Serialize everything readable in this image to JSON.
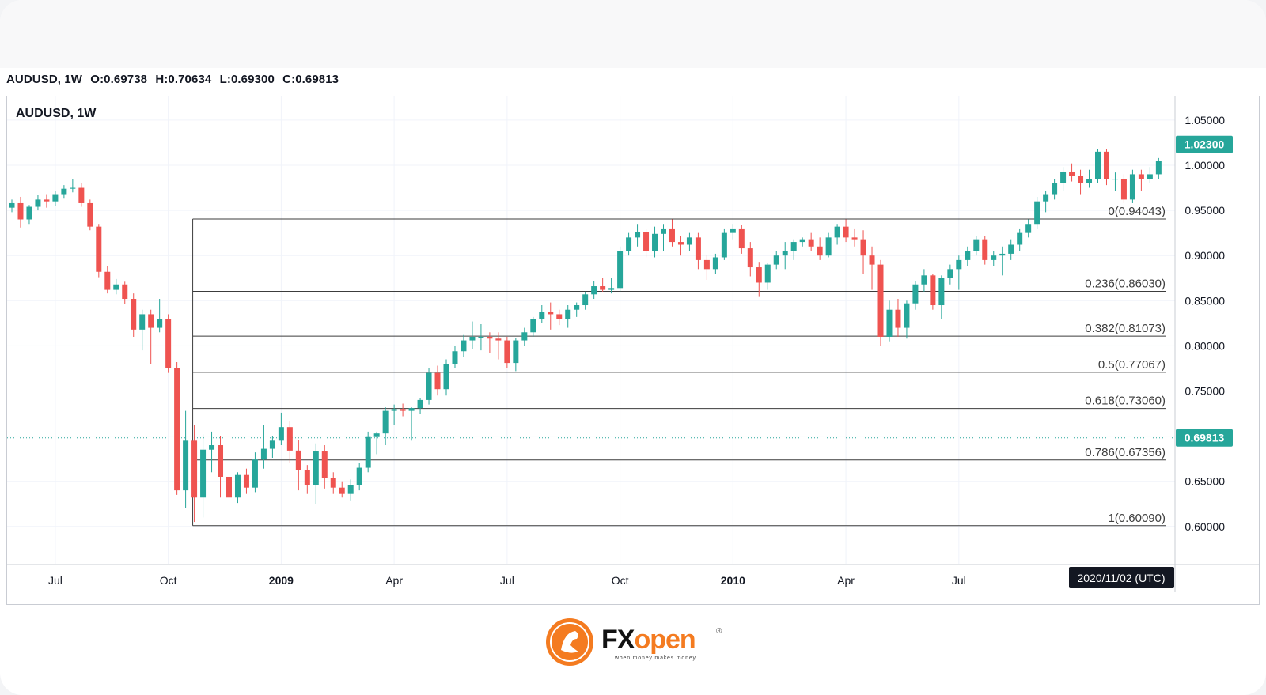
{
  "header": {
    "symbol": "AUDUSD, 1W",
    "open": "O:0.69738",
    "high": "H:0.70634",
    "low": "L:0.69300",
    "close": "C:0.69813"
  },
  "pane_title": "AUDUSD, 1W",
  "brand": {
    "name_fx": "FX",
    "name_open": "open",
    "registered": "®",
    "tagline": "when money makes money"
  },
  "colors": {
    "up": "#26a69a",
    "down": "#ef5350",
    "price_label": "#26a69a",
    "fib_line": "#3c3c3c",
    "accent": "#f47b20"
  },
  "chart_data": {
    "type": "candlestick",
    "symbol": "AUDUSD",
    "interval": "1W",
    "price_axis": {
      "ticks": [
        "1.05000",
        "1.00000",
        "0.95000",
        "0.90000",
        "0.85000",
        "0.80000",
        "0.75000",
        "0.70000",
        "0.65000",
        "0.60000"
      ],
      "tick_values": [
        1.05,
        1.0,
        0.95,
        0.9,
        0.85,
        0.8,
        0.75,
        0.7,
        0.65,
        0.6
      ],
      "ylim": [
        0.555,
        1.078
      ]
    },
    "time_axis": {
      "labels": [
        "Jul",
        "Oct",
        "2009",
        "Apr",
        "Jul",
        "Oct",
        "2010",
        "Apr",
        "Jul"
      ],
      "label_index": [
        5,
        18,
        31,
        44,
        57,
        70,
        83,
        96,
        109
      ],
      "bold": [
        false,
        false,
        true,
        false,
        false,
        false,
        true,
        false,
        false
      ]
    },
    "price_labels": [
      {
        "text": "1.02300",
        "value": 1.023
      },
      {
        "text": "0.69813",
        "value": 0.69813
      }
    ],
    "current_price": 0.69813,
    "crosshair_time_label": "2020/11/02 (UTC)",
    "fibonacci": {
      "start_index": 21,
      "levels": [
        {
          "label": "0(0.94043)",
          "value": 0.94043
        },
        {
          "label": "0.236(0.86030)",
          "value": 0.8603
        },
        {
          "label": "0.382(0.81073)",
          "value": 0.81073
        },
        {
          "label": "0.5(0.77067)",
          "value": 0.77067
        },
        {
          "label": "0.618(0.73060)",
          "value": 0.7306
        },
        {
          "label": "0.786(0.67356)",
          "value": 0.67356
        },
        {
          "label": "1(0.60090)",
          "value": 0.6009
        }
      ]
    },
    "candles": [
      [
        0.953,
        0.962,
        0.948,
        0.958
      ],
      [
        0.958,
        0.965,
        0.931,
        0.94
      ],
      [
        0.94,
        0.956,
        0.935,
        0.954
      ],
      [
        0.954,
        0.967,
        0.95,
        0.962
      ],
      [
        0.962,
        0.968,
        0.953,
        0.96
      ],
      [
        0.96,
        0.972,
        0.955,
        0.968
      ],
      [
        0.968,
        0.978,
        0.963,
        0.974
      ],
      [
        0.974,
        0.985,
        0.97,
        0.975
      ],
      [
        0.975,
        0.98,
        0.954,
        0.958
      ],
      [
        0.958,
        0.962,
        0.928,
        0.932
      ],
      [
        0.932,
        0.935,
        0.876,
        0.882
      ],
      [
        0.882,
        0.888,
        0.858,
        0.862
      ],
      [
        0.862,
        0.874,
        0.857,
        0.868
      ],
      [
        0.868,
        0.871,
        0.846,
        0.852
      ],
      [
        0.852,
        0.858,
        0.81,
        0.818
      ],
      [
        0.818,
        0.84,
        0.795,
        0.835
      ],
      [
        0.835,
        0.84,
        0.78,
        0.82
      ],
      [
        0.82,
        0.852,
        0.815,
        0.83
      ],
      [
        0.83,
        0.835,
        0.77,
        0.775
      ],
      [
        0.775,
        0.782,
        0.635,
        0.64
      ],
      [
        0.64,
        0.728,
        0.62,
        0.695
      ],
      [
        0.695,
        0.712,
        0.605,
        0.632
      ],
      [
        0.632,
        0.702,
        0.61,
        0.685
      ],
      [
        0.685,
        0.705,
        0.66,
        0.69
      ],
      [
        0.69,
        0.7,
        0.632,
        0.655
      ],
      [
        0.655,
        0.664,
        0.61,
        0.632
      ],
      [
        0.632,
        0.66,
        0.626,
        0.657
      ],
      [
        0.657,
        0.664,
        0.636,
        0.643
      ],
      [
        0.643,
        0.682,
        0.638,
        0.674
      ],
      [
        0.674,
        0.712,
        0.664,
        0.686
      ],
      [
        0.686,
        0.7,
        0.676,
        0.695
      ],
      [
        0.695,
        0.726,
        0.69,
        0.71
      ],
      [
        0.71,
        0.717,
        0.67,
        0.684
      ],
      [
        0.684,
        0.696,
        0.64,
        0.662
      ],
      [
        0.662,
        0.668,
        0.636,
        0.646
      ],
      [
        0.646,
        0.692,
        0.625,
        0.683
      ],
      [
        0.683,
        0.69,
        0.642,
        0.654
      ],
      [
        0.654,
        0.66,
        0.636,
        0.643
      ],
      [
        0.643,
        0.65,
        0.632,
        0.636
      ],
      [
        0.636,
        0.652,
        0.628,
        0.646
      ],
      [
        0.646,
        0.67,
        0.64,
        0.665
      ],
      [
        0.665,
        0.705,
        0.66,
        0.699
      ],
      [
        0.699,
        0.705,
        0.68,
        0.703
      ],
      [
        0.703,
        0.732,
        0.69,
        0.728
      ],
      [
        0.728,
        0.735,
        0.712,
        0.73
      ],
      [
        0.73,
        0.736,
        0.722,
        0.728
      ],
      [
        0.728,
        0.732,
        0.695,
        0.731
      ],
      [
        0.731,
        0.742,
        0.725,
        0.74
      ],
      [
        0.74,
        0.775,
        0.735,
        0.77
      ],
      [
        0.77,
        0.778,
        0.745,
        0.752
      ],
      [
        0.752,
        0.785,
        0.745,
        0.78
      ],
      [
        0.78,
        0.8,
        0.775,
        0.794
      ],
      [
        0.794,
        0.812,
        0.788,
        0.806
      ],
      [
        0.806,
        0.827,
        0.796,
        0.81
      ],
      [
        0.81,
        0.824,
        0.795,
        0.81
      ],
      [
        0.81,
        0.815,
        0.792,
        0.808
      ],
      [
        0.808,
        0.815,
        0.785,
        0.806
      ],
      [
        0.806,
        0.81,
        0.775,
        0.781
      ],
      [
        0.781,
        0.809,
        0.772,
        0.806
      ],
      [
        0.806,
        0.82,
        0.8,
        0.815
      ],
      [
        0.815,
        0.832,
        0.81,
        0.83
      ],
      [
        0.83,
        0.845,
        0.825,
        0.838
      ],
      [
        0.838,
        0.848,
        0.818,
        0.835
      ],
      [
        0.835,
        0.84,
        0.823,
        0.83
      ],
      [
        0.83,
        0.845,
        0.82,
        0.84
      ],
      [
        0.84,
        0.848,
        0.832,
        0.845
      ],
      [
        0.845,
        0.86,
        0.84,
        0.857
      ],
      [
        0.857,
        0.872,
        0.852,
        0.866
      ],
      [
        0.866,
        0.875,
        0.86,
        0.862
      ],
      [
        0.862,
        0.875,
        0.858,
        0.864
      ],
      [
        0.864,
        0.91,
        0.86,
        0.905
      ],
      [
        0.905,
        0.925,
        0.9,
        0.92
      ],
      [
        0.92,
        0.935,
        0.91,
        0.926
      ],
      [
        0.926,
        0.93,
        0.898,
        0.905
      ],
      [
        0.905,
        0.932,
        0.898,
        0.924
      ],
      [
        0.924,
        0.935,
        0.905,
        0.93
      ],
      [
        0.93,
        0.94,
        0.91,
        0.915
      ],
      [
        0.915,
        0.922,
        0.9,
        0.912
      ],
      [
        0.912,
        0.925,
        0.905,
        0.92
      ],
      [
        0.92,
        0.925,
        0.885,
        0.895
      ],
      [
        0.895,
        0.9,
        0.873,
        0.885
      ],
      [
        0.885,
        0.902,
        0.88,
        0.898
      ],
      [
        0.898,
        0.93,
        0.895,
        0.925
      ],
      [
        0.925,
        0.935,
        0.918,
        0.93
      ],
      [
        0.93,
        0.934,
        0.902,
        0.908
      ],
      [
        0.908,
        0.915,
        0.877,
        0.887
      ],
      [
        0.887,
        0.893,
        0.855,
        0.87
      ],
      [
        0.87,
        0.892,
        0.862,
        0.89
      ],
      [
        0.89,
        0.905,
        0.885,
        0.9
      ],
      [
        0.9,
        0.915,
        0.885,
        0.905
      ],
      [
        0.905,
        0.918,
        0.895,
        0.915
      ],
      [
        0.915,
        0.92,
        0.91,
        0.918
      ],
      [
        0.918,
        0.925,
        0.905,
        0.91
      ],
      [
        0.91,
        0.92,
        0.895,
        0.9
      ],
      [
        0.9,
        0.925,
        0.898,
        0.92
      ],
      [
        0.92,
        0.935,
        0.912,
        0.932
      ],
      [
        0.932,
        0.94,
        0.915,
        0.92
      ],
      [
        0.92,
        0.93,
        0.91,
        0.918
      ],
      [
        0.918,
        0.928,
        0.88,
        0.9
      ],
      [
        0.9,
        0.91,
        0.862,
        0.89
      ],
      [
        0.89,
        0.895,
        0.8,
        0.81
      ],
      [
        0.81,
        0.85,
        0.805,
        0.84
      ],
      [
        0.84,
        0.852,
        0.81,
        0.82
      ],
      [
        0.82,
        0.85,
        0.808,
        0.847
      ],
      [
        0.847,
        0.872,
        0.84,
        0.868
      ],
      [
        0.868,
        0.885,
        0.86,
        0.878
      ],
      [
        0.878,
        0.88,
        0.84,
        0.845
      ],
      [
        0.845,
        0.878,
        0.83,
        0.875
      ],
      [
        0.875,
        0.89,
        0.868,
        0.885
      ],
      [
        0.885,
        0.9,
        0.862,
        0.895
      ],
      [
        0.895,
        0.91,
        0.888,
        0.905
      ],
      [
        0.905,
        0.922,
        0.9,
        0.918
      ],
      [
        0.918,
        0.922,
        0.89,
        0.895
      ],
      [
        0.895,
        0.905,
        0.888,
        0.9
      ],
      [
        0.9,
        0.91,
        0.878,
        0.902
      ],
      [
        0.902,
        0.918,
        0.895,
        0.912
      ],
      [
        0.912,
        0.93,
        0.905,
        0.925
      ],
      [
        0.925,
        0.94,
        0.92,
        0.935
      ],
      [
        0.935,
        0.965,
        0.93,
        0.96
      ],
      [
        0.96,
        0.972,
        0.948,
        0.968
      ],
      [
        0.968,
        0.985,
        0.962,
        0.98
      ],
      [
        0.98,
        0.998,
        0.972,
        0.993
      ],
      [
        0.993,
        1.002,
        0.982,
        0.988
      ],
      [
        0.988,
        0.995,
        0.968,
        0.98
      ],
      [
        0.98,
        0.995,
        0.975,
        0.985
      ],
      [
        0.985,
        1.018,
        0.98,
        1.015
      ],
      [
        1.015,
        1.018,
        0.978,
        0.985
      ],
      [
        0.985,
        0.992,
        0.972,
        0.985
      ],
      [
        0.985,
        0.99,
        0.958,
        0.962
      ],
      [
        0.962,
        0.995,
        0.958,
        0.99
      ],
      [
        0.99,
        0.995,
        0.972,
        0.985
      ],
      [
        0.985,
        0.998,
        0.98,
        0.99
      ],
      [
        0.99,
        1.008,
        0.985,
        1.005
      ]
    ]
  }
}
